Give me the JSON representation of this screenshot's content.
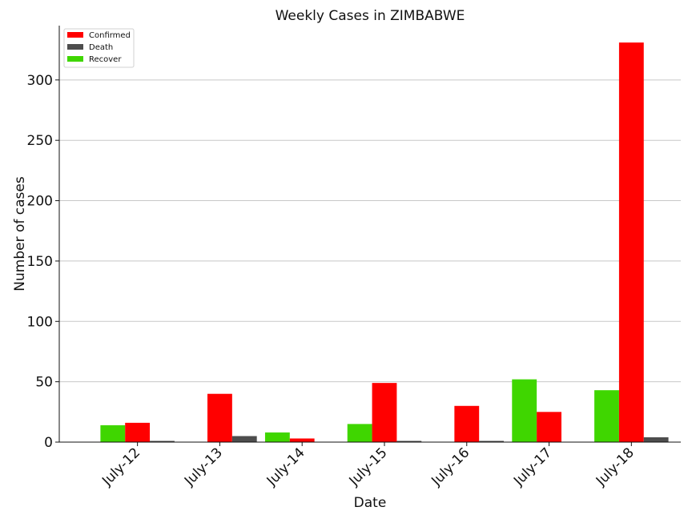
{
  "chart_data": {
    "type": "bar",
    "title": "Weekly Cases in ZIMBABWE",
    "xlabel": "Date",
    "ylabel": "Number of cases",
    "categories": [
      "July-12",
      "July-13",
      "July-14",
      "July-15",
      "July-16",
      "July-17",
      "July-18"
    ],
    "series": [
      {
        "name": "Recover",
        "color": "#3fd600",
        "values": [
          14,
          0,
          8,
          15,
          0,
          52,
          43
        ]
      },
      {
        "name": "Confirmed",
        "color": "#ff0000",
        "values": [
          16,
          40,
          3,
          49,
          30,
          25,
          331
        ]
      },
      {
        "name": "Death",
        "color": "#4d4d4d",
        "values": [
          1,
          5,
          0,
          1,
          1,
          0,
          4
        ]
      }
    ],
    "legend": {
      "position": "top-left",
      "entries": [
        {
          "name": "Confirmed",
          "color": "#ff0000"
        },
        {
          "name": "Death",
          "color": "#4d4d4d"
        },
        {
          "name": "Recover",
          "color": "#3fd600"
        }
      ]
    },
    "ylim": [
      0,
      345
    ],
    "yticks": [
      0,
      50,
      100,
      150,
      200,
      250,
      300
    ],
    "grid": "horizontal",
    "xtick_rotation": 45
  }
}
